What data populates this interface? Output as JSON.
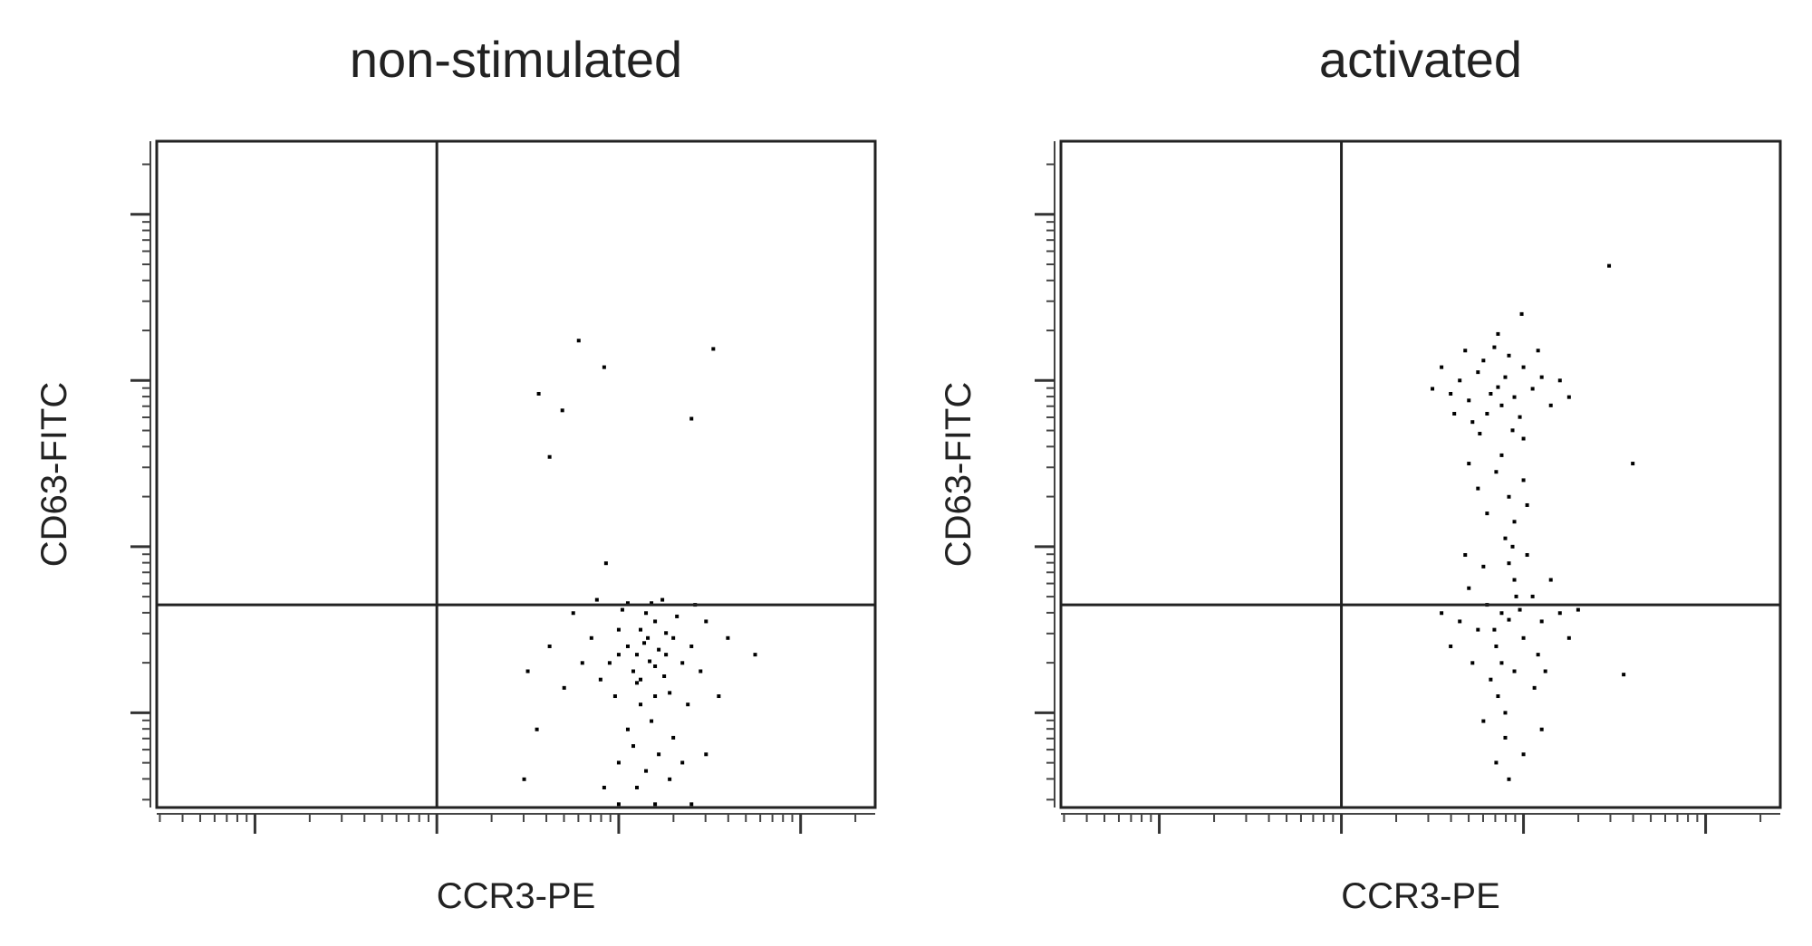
{
  "chart_data": [
    {
      "type": "scatter",
      "title": "non-stimulated",
      "xlabel": "CCR3-PE",
      "ylabel": "CD63-FITC",
      "color": "#000000",
      "xlim": [
        0.46,
        4.41
      ],
      "ylim": [
        0.43,
        4.44
      ],
      "xticks": [
        1,
        2,
        3,
        4
      ],
      "yticks": [
        1,
        2,
        3,
        4
      ],
      "gate_x": 2,
      "gate_y": 1.65,
      "x": [
        2.78,
        3.52,
        2.56,
        2.62,
        3.4,
        2.92,
        2.93,
        2.69,
        3.17,
        3.05,
        3.25,
        3.1,
        3.3,
        2.95,
        3.2,
        3.12,
        3.35,
        3.0,
        3.22,
        3.08,
        3.28,
        3.15,
        2.9,
        3.4,
        3.18,
        3.02,
        3.32,
        3.1,
        2.85,
        3.45,
        3.05,
        3.24,
        3.14,
        2.98,
        3.38,
        3.2,
        3.12,
        3.26,
        2.8,
        3.48,
        3.08,
        3.22,
        3.3,
        2.7,
        2.62,
        3.55,
        3.15,
        3.35,
        2.5,
        2.55,
        3.6,
        3.0,
        3.28,
        2.75,
        3.42,
        2.88,
        3.18,
        3.05,
        3.12,
        3.2,
        3.26,
        3.0,
        3.16,
        2.48,
        3.75,
        3.48,
        3.1,
        2.92,
        3.0,
        3.2,
        3.4
      ],
      "values": [
        3.24,
        3.19,
        2.92,
        2.54,
        2.77,
        3.08,
        1.9,
        2.82,
        1.31,
        1.4,
        1.22,
        1.18,
        1.45,
        1.3,
        1.55,
        1.05,
        1.3,
        1.5,
        1.38,
        1.25,
        1.12,
        1.6,
        1.2,
        1.4,
        0.95,
        1.62,
        1.58,
        1.35,
        1.45,
        1.25,
        0.9,
        1.68,
        1.42,
        1.1,
        1.05,
        1.28,
        1.5,
        1.48,
        1.3,
        1.55,
        0.8,
        0.75,
        0.85,
        1.15,
        1.4,
        1.1,
        0.65,
        0.7,
        1.25,
        0.9,
        1.45,
        0.7,
        0.6,
        1.6,
        1.65,
        1.68,
        1.66,
        1.66,
        1.2,
        1.1,
        1.35,
        1.35,
        1.45,
        0.6,
        1.35,
        0.75,
        0.55,
        0.55,
        0.45,
        0.45,
        0.45
      ]
    },
    {
      "type": "scatter",
      "title": "activated",
      "xlabel": "CCR3-PE",
      "ylabel": "CD63-FITC",
      "color": "#000000",
      "xlim": [
        0.46,
        4.41
      ],
      "ylim": [
        0.43,
        4.44
      ],
      "xticks": [
        1,
        2,
        3,
        4
      ],
      "yticks": [
        1,
        2,
        3,
        4
      ],
      "gate_x": 2,
      "gate_y": 1.65,
      "x": [
        2.86,
        2.75,
        2.95,
        2.7,
        3.0,
        2.8,
        2.92,
        2.65,
        3.05,
        2.78,
        2.88,
        2.6,
        3.1,
        2.84,
        2.72,
        2.98,
        3.15,
        2.55,
        2.9,
        2.82,
        3.2,
        2.68,
        2.94,
        2.5,
        3.08,
        2.76,
        3.25,
        2.86,
        2.62,
        3.0,
        2.85,
        2.92,
        2.8,
        3.0,
        2.88,
        2.75,
        2.95,
        3.02,
        2.7,
        2.9,
        2.92,
        2.8,
        3.0,
        2.85,
        3.05,
        2.75,
        2.95,
        2.88,
        3.1,
        2.7,
        2.98,
        2.82,
        3.08,
        2.92,
        2.65,
        3.15,
        2.86,
        3.02,
        2.78,
        3.12,
        2.6,
        3.2,
        2.9,
        2.96,
        2.84,
        2.72,
        3.06,
        2.94,
        2.68,
        3.25,
        2.9,
        3.0,
        2.78,
        2.85,
        3.1,
        2.95,
        2.88,
        3.3,
        2.55,
        2.92,
        3.47,
        3.6,
        2.99,
        3.55
      ],
      "values": [
        2.96,
        3.05,
        2.9,
        2.88,
        3.08,
        2.8,
        3.15,
        3.0,
        2.95,
        3.12,
        2.85,
        2.92,
        3.02,
        3.2,
        2.75,
        2.78,
        2.85,
        3.08,
        3.02,
        2.92,
        3.0,
        3.18,
        2.7,
        2.95,
        3.18,
        2.68,
        2.9,
        3.28,
        2.8,
        2.65,
        2.45,
        2.3,
        2.2,
        2.4,
        2.55,
        2.35,
        2.15,
        2.25,
        2.5,
        2.05,
        1.56,
        1.65,
        1.45,
        1.4,
        1.7,
        1.5,
        1.8,
        1.3,
        1.55,
        1.75,
        1.62,
        1.2,
        1.35,
        1.9,
        1.55,
        1.8,
        1.1,
        1.95,
        1.88,
        1.25,
        1.4,
        1.6,
        1.0,
        1.7,
        1.5,
        1.3,
        1.15,
        2.0,
        1.95,
        1.45,
        0.85,
        0.75,
        0.95,
        0.7,
        0.9,
        1.25,
        1.6,
        1.62,
        1.6,
        0.6,
        3.69,
        2.5,
        3.4,
        1.23
      ]
    }
  ]
}
